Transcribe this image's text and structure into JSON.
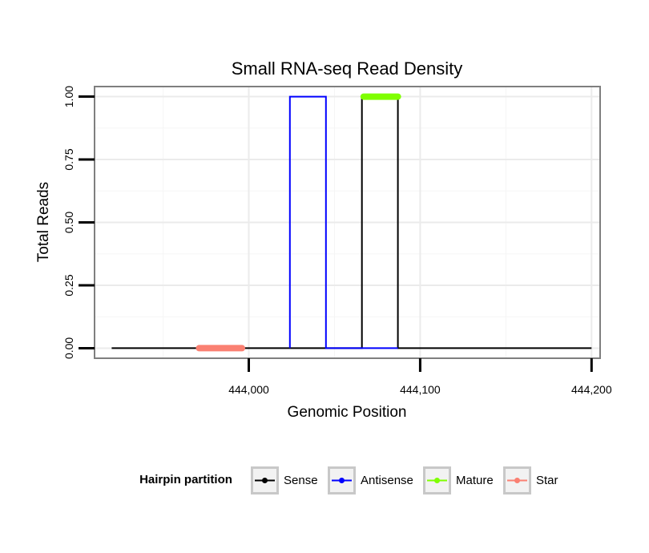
{
  "chart_data": {
    "type": "line",
    "title": "Small RNA-seq Read Density",
    "xlabel": "Genomic Position",
    "ylabel": "Total Reads",
    "xlim": [
      443910,
      444205
    ],
    "ylim": [
      -0.04,
      1.04
    ],
    "x_ticks": [
      444000,
      444100,
      444200
    ],
    "x_tick_labels": [
      "444,000",
      "444,100",
      "444,200"
    ],
    "y_ticks": [
      0,
      0.25,
      0.5,
      0.75,
      1.0
    ],
    "y_tick_labels": [
      "0.00",
      "0.25",
      "0.50",
      "0.75",
      "1.00"
    ],
    "grid": true,
    "legend": {
      "title": "Hairpin partition",
      "position": "bottom",
      "entries": [
        {
          "name": "Sense",
          "color": "#000000"
        },
        {
          "name": "Antisense",
          "color": "#0000ff"
        },
        {
          "name": "Mature",
          "color": "#7fff00"
        },
        {
          "name": "Star",
          "color": "#fa8072"
        }
      ]
    },
    "series": [
      {
        "name": "Sense",
        "color": "#000000",
        "style": "line",
        "x": [
          443920,
          444066,
          444066,
          444087,
          444087,
          444200
        ],
        "values": [
          0,
          0,
          1,
          1,
          0,
          0
        ]
      },
      {
        "name": "Antisense",
        "color": "#0000ff",
        "style": "line",
        "x": [
          444024,
          444024,
          444045,
          444045,
          444066,
          444087
        ],
        "values": [
          0,
          1,
          1,
          0,
          0,
          0
        ]
      },
      {
        "name": "Mature",
        "color": "#7fff00",
        "style": "thick",
        "x": [
          444067,
          444087
        ],
        "values": [
          1,
          1
        ]
      },
      {
        "name": "Star",
        "color": "#fa8072",
        "style": "thick",
        "x": [
          443971,
          443996
        ],
        "values": [
          0,
          0
        ]
      }
    ]
  }
}
